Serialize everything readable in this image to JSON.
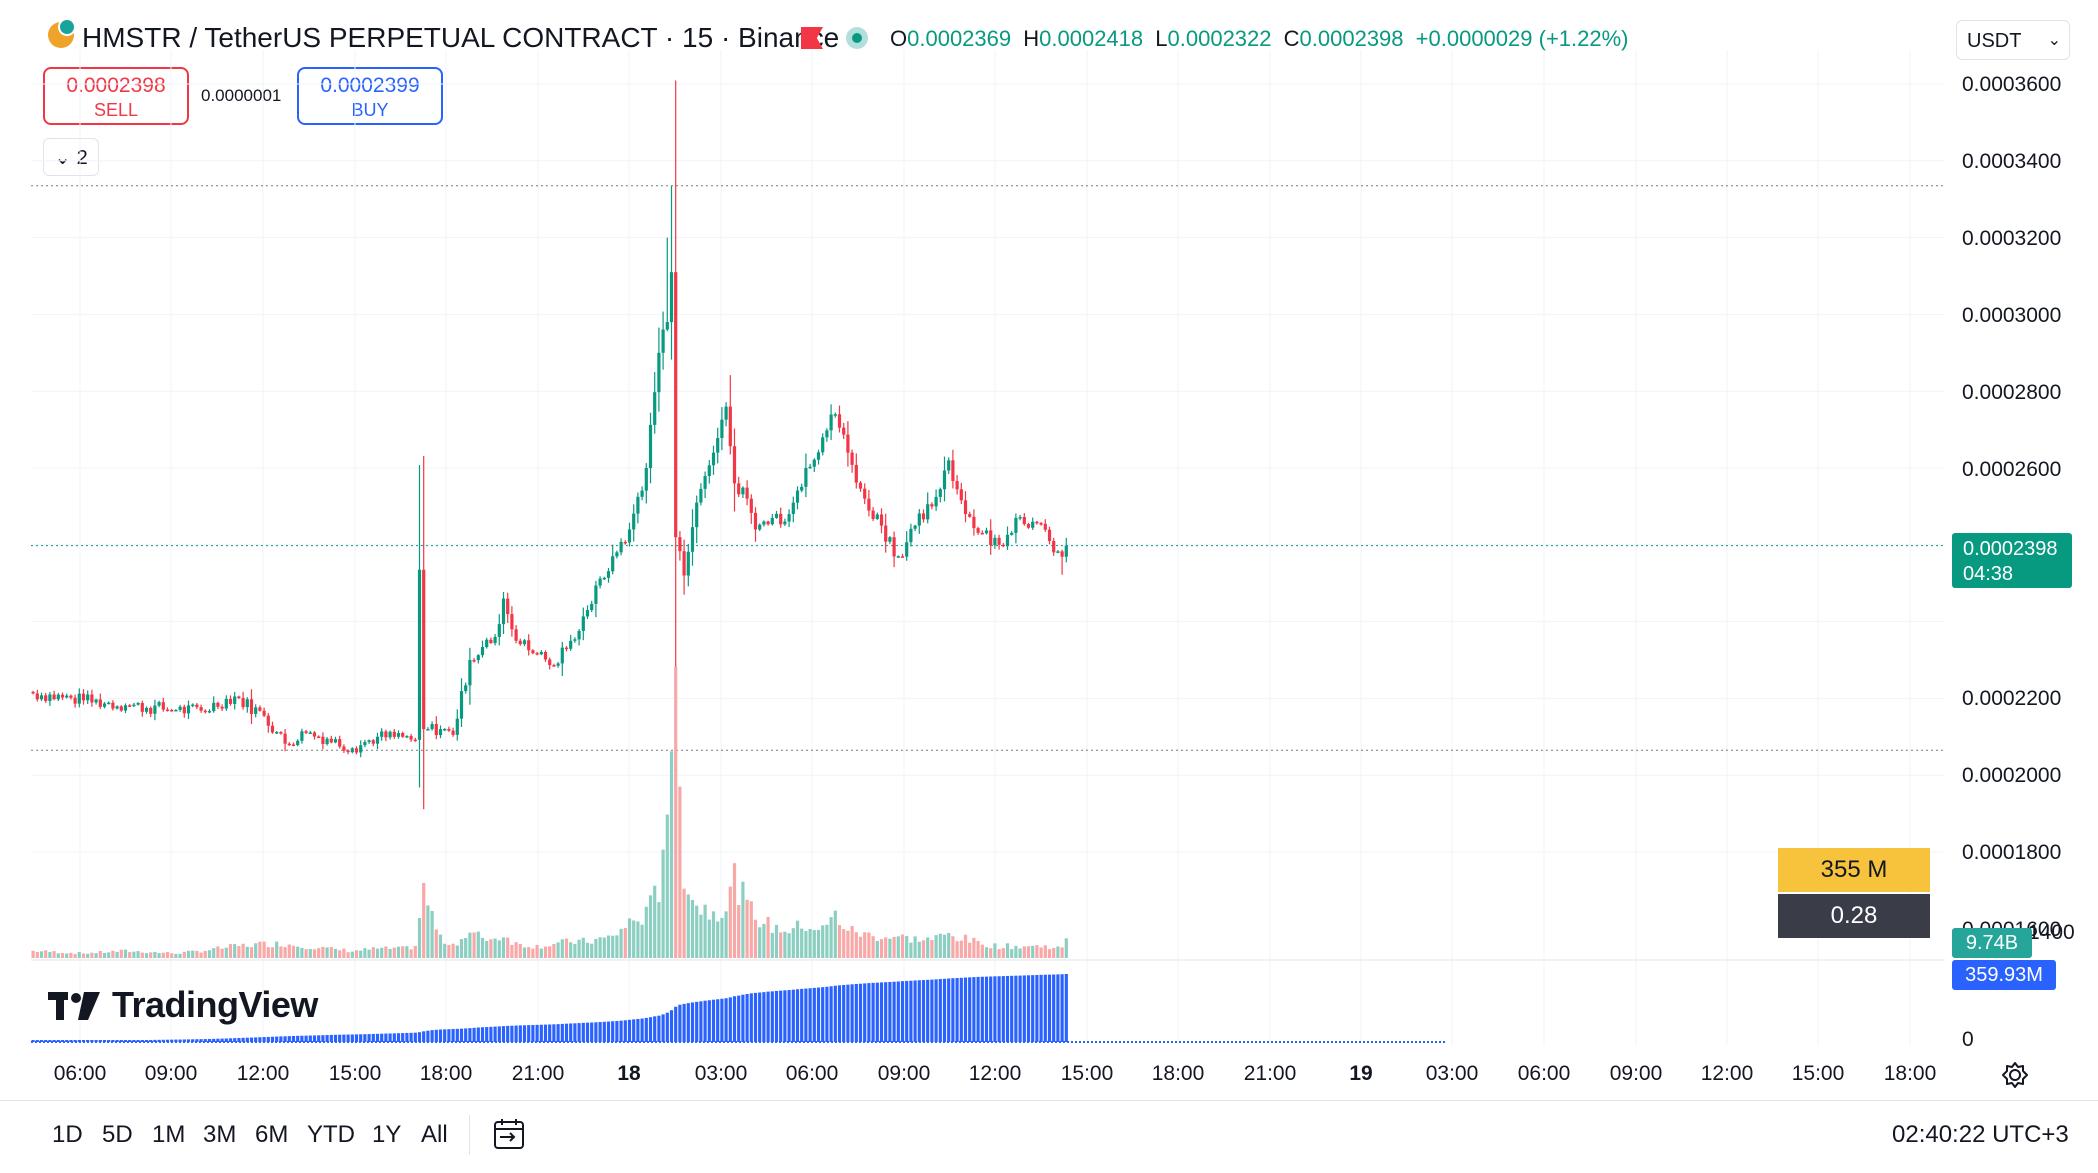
{
  "header": {
    "symbol_title": "HMSTR / TetherUS PERPETUAL CONTRACT · 15 · Binance",
    "ohlc": {
      "o_key": "O",
      "o_val": "0.0002369",
      "h_key": "H",
      "h_val": "0.0002418",
      "l_key": "L",
      "l_val": "0.0002322",
      "c_key": "C",
      "c_val": "0.0002398",
      "change": "+0.0000029 (+1.22%)"
    },
    "currency": "USDT"
  },
  "trade": {
    "sell_price": "0.0002398",
    "sell_label": "SELL",
    "spread": "0.0000001",
    "buy_price": "0.0002399",
    "buy_label": "BUY",
    "indicators_count": "2"
  },
  "badges": {
    "volume_value": "355 M",
    "ratio_value": "0.28",
    "last_price": "0.0002398",
    "countdown": "04:38",
    "volume_axis": "9.74B",
    "cum_volume_axis": "359.93M"
  },
  "logo_text": "TradingView",
  "range_buttons": [
    "1D",
    "5D",
    "1M",
    "3M",
    "6M",
    "YTD",
    "1Y",
    "All"
  ],
  "clock": "02:40:22 UTC+3",
  "colors": {
    "up": "#089981",
    "down": "#f23645",
    "cumulative": "#2962ff",
    "volume_up": "#8ccfc2",
    "volume_down": "#f7a9a7"
  },
  "chart_data": {
    "type": "candlestick",
    "price_axis_ticks": [
      "0.0003600",
      "0.0003400",
      "0.0003200",
      "0.0003000",
      "0.0002800",
      "0.0002600",
      "0.0002200",
      "0.0002000",
      "0.0001800",
      "0.0001600",
      "1400",
      "0"
    ],
    "time_axis_ticks": [
      "06:00",
      "09:00",
      "12:00",
      "15:00",
      "18:00",
      "21:00",
      "18",
      "03:00",
      "06:00",
      "09:00",
      "12:00",
      "15:00",
      "18:00",
      "21:00",
      "19",
      "03:00",
      "06:00",
      "09:00",
      "12:00",
      "15:00",
      "18:00"
    ],
    "interval": "15",
    "price_ylim": [
      0.00014,
      0.00036
    ],
    "high_line": 0.0003335,
    "low_line": 0.0001865,
    "last_price": 0.0002398,
    "anchors": [
      {
        "x": 0,
        "price": 0.0002013,
        "vol": 0.03
      },
      {
        "x": 12,
        "price": 0.0001995,
        "vol": 0.02
      },
      {
        "x": 22,
        "price": 0.0001982,
        "vol": 0.03
      },
      {
        "x": 34,
        "price": 0.000197,
        "vol": 0.02
      },
      {
        "x": 40,
        "price": 0.0001968,
        "vol": 0.03
      },
      {
        "x": 48,
        "price": 0.0002005,
        "vol": 0.05
      },
      {
        "x": 55,
        "price": 0.0001955,
        "vol": 0.06
      },
      {
        "x": 60,
        "price": 0.0001882,
        "vol": 0.06
      },
      {
        "x": 65,
        "price": 0.000191,
        "vol": 0.05
      },
      {
        "x": 70,
        "price": 0.0001895,
        "vol": 0.04
      },
      {
        "x": 76,
        "price": 0.000187,
        "vol": 0.03
      },
      {
        "x": 82,
        "price": 0.00019,
        "vol": 0.04
      },
      {
        "x": 88,
        "price": 0.00019,
        "vol": 0.04
      },
      {
        "x": 91,
        "price": 0.0001892,
        "vol": 0.05
      },
      {
        "x": 92,
        "price": 0.0002335,
        "vol": 0.18
      },
      {
        "x": 93,
        "price": 0.000192,
        "vol": 0.28
      },
      {
        "x": 97,
        "price": 0.000192,
        "vol": 0.08
      },
      {
        "x": 100,
        "price": 0.0001905,
        "vol": 0.06
      },
      {
        "x": 104,
        "price": 0.00021,
        "vol": 0.1
      },
      {
        "x": 110,
        "price": 0.000216,
        "vol": 0.08
      },
      {
        "x": 112,
        "price": 0.000226,
        "vol": 0.1
      },
      {
        "x": 115,
        "price": 0.000215,
        "vol": 0.06
      },
      {
        "x": 120,
        "price": 0.0002115,
        "vol": 0.05
      },
      {
        "x": 124,
        "price": 0.0002085,
        "vol": 0.06
      },
      {
        "x": 128,
        "price": 0.000215,
        "vol": 0.07
      },
      {
        "x": 132,
        "price": 0.000223,
        "vol": 0.07
      },
      {
        "x": 138,
        "price": 0.000237,
        "vol": 0.09
      },
      {
        "x": 142,
        "price": 0.000244,
        "vol": 0.15
      },
      {
        "x": 146,
        "price": 0.00026,
        "vol": 0.18
      },
      {
        "x": 149,
        "price": 0.00029,
        "vol": 0.3
      },
      {
        "x": 151,
        "price": 0.000298,
        "vol": 0.7
      },
      {
        "x": 152,
        "price": 0.000311,
        "vol": 0.95
      },
      {
        "x": 153,
        "price": 0.000242,
        "vol": 1.0
      },
      {
        "x": 155,
        "price": 0.000232,
        "vol": 0.38
      },
      {
        "x": 158,
        "price": 0.000251,
        "vol": 0.22
      },
      {
        "x": 162,
        "price": 0.000264,
        "vol": 0.2
      },
      {
        "x": 165,
        "price": 0.000276,
        "vol": 0.22
      },
      {
        "x": 167,
        "price": 0.000256,
        "vol": 0.34
      },
      {
        "x": 170,
        "price": 0.000252,
        "vol": 0.22
      },
      {
        "x": 172,
        "price": 0.000244,
        "vol": 0.18
      },
      {
        "x": 176,
        "price": 0.000247,
        "vol": 0.13
      },
      {
        "x": 180,
        "price": 0.000248,
        "vol": 0.12
      },
      {
        "x": 184,
        "price": 0.00026,
        "vol": 0.14
      },
      {
        "x": 188,
        "price": 0.000268,
        "vol": 0.12
      },
      {
        "x": 191,
        "price": 0.000274,
        "vol": 0.18
      },
      {
        "x": 194,
        "price": 0.000264,
        "vol": 0.12
      },
      {
        "x": 198,
        "price": 0.000252,
        "vol": 0.1
      },
      {
        "x": 202,
        "price": 0.000245,
        "vol": 0.09
      },
      {
        "x": 206,
        "price": 0.000237,
        "vol": 0.09
      },
      {
        "x": 210,
        "price": 0.000245,
        "vol": 0.08
      },
      {
        "x": 214,
        "price": 0.00025,
        "vol": 0.08
      },
      {
        "x": 218,
        "price": 0.000262,
        "vol": 0.1
      },
      {
        "x": 222,
        "price": 0.000248,
        "vol": 0.08
      },
      {
        "x": 226,
        "price": 0.000243,
        "vol": 0.06
      },
      {
        "x": 230,
        "price": 0.00024,
        "vol": 0.05
      },
      {
        "x": 234,
        "price": 0.000247,
        "vol": 0.05
      },
      {
        "x": 238,
        "price": 0.000246,
        "vol": 0.05
      },
      {
        "x": 242,
        "price": 0.000241,
        "vol": 0.05
      },
      {
        "x": 245,
        "price": 0.0002369,
        "vol": 0.04
      },
      {
        "x": 246,
        "price": 0.0002398,
        "vol": 0.07
      }
    ]
  }
}
